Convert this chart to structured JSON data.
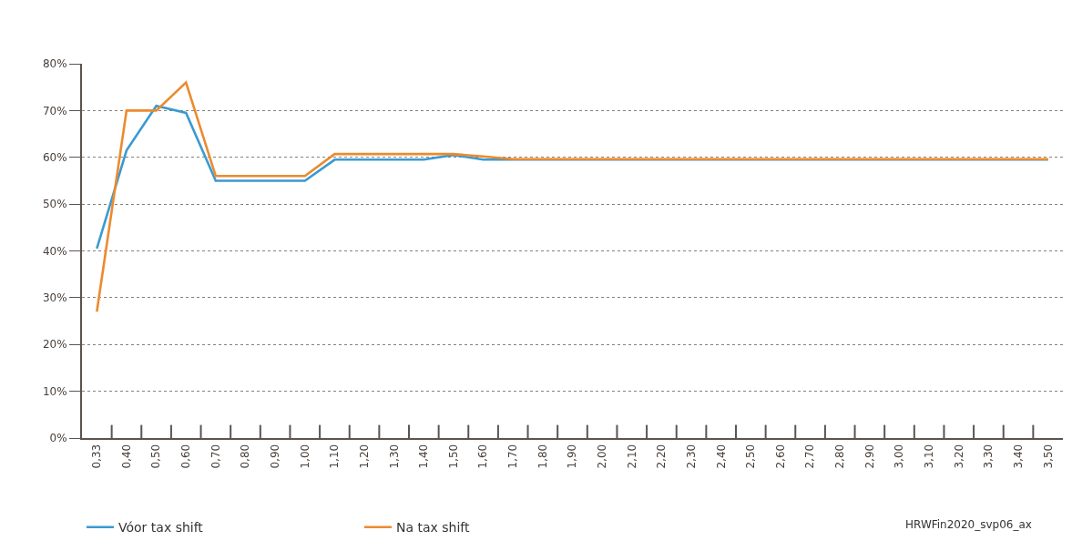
{
  "chart_data": {
    "type": "line",
    "categories": [
      "0,33",
      "0,40",
      "0,50",
      "0,60",
      "0,70",
      "0,80",
      "0,90",
      "1,00",
      "1,10",
      "1,20",
      "1,30",
      "1,40",
      "1,50",
      "1,60",
      "1,70",
      "1,80",
      "1,90",
      "2,00",
      "2,10",
      "2,20",
      "2,30",
      "2,40",
      "2,50",
      "2,60",
      "2,70",
      "2,80",
      "2,90",
      "3,00",
      "3,10",
      "3,20",
      "3,30",
      "3,40",
      "3,50"
    ],
    "series": [
      {
        "name": "Vóor tax shift",
        "color": "#3b9ad2",
        "values": [
          40.5,
          61.5,
          71,
          69.5,
          55,
          55,
          55,
          55,
          59.5,
          59.5,
          59.5,
          59.5,
          60.5,
          59.5,
          59.5,
          59.5,
          59.5,
          59.5,
          59.5,
          59.5,
          59.5,
          59.5,
          59.5,
          59.5,
          59.5,
          59.5,
          59.5,
          59.5,
          59.5,
          59.5,
          59.5,
          59.5,
          59.5
        ]
      },
      {
        "name": "Na tax shift",
        "color": "#ec8a2e",
        "values": [
          27,
          70,
          70,
          76,
          56,
          56,
          56,
          56,
          60.7,
          60.7,
          60.7,
          60.7,
          60.7,
          60.2,
          59.6,
          59.6,
          59.6,
          59.6,
          59.6,
          59.6,
          59.6,
          59.6,
          59.6,
          59.6,
          59.6,
          59.6,
          59.6,
          59.6,
          59.6,
          59.6,
          59.6,
          59.6,
          59.6
        ]
      }
    ],
    "ylim": [
      0,
      80
    ],
    "yticks": [
      {
        "value": 0,
        "label": "0%"
      },
      {
        "value": 10,
        "label": "10%"
      },
      {
        "value": 20,
        "label": "20%"
      },
      {
        "value": 30,
        "label": "30%"
      },
      {
        "value": 40,
        "label": "40%"
      },
      {
        "value": 50,
        "label": "50%"
      },
      {
        "value": 60,
        "label": "60%"
      },
      {
        "value": 70,
        "label": "70%"
      },
      {
        "value": 80,
        "label": "80%"
      }
    ],
    "grid": "y",
    "legend": "bottom left",
    "marker": "none",
    "line_style": "solid",
    "annotations": [
      "HRWFin2020_svp06_ax"
    ]
  }
}
